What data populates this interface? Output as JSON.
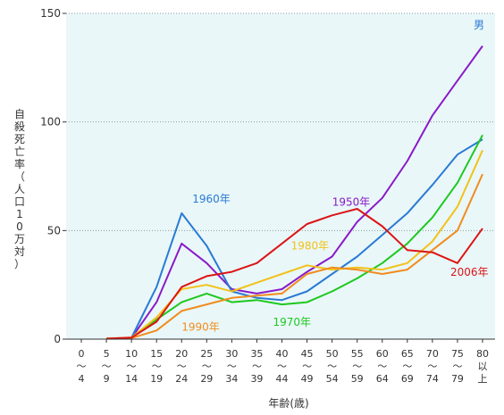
{
  "chart_data": {
    "type": "line",
    "title": "",
    "xlabel": "年齢(歳)",
    "ylabel": "自殺死亡率（人口10万対）",
    "ylim": [
      0,
      150
    ],
    "yticks": [
      "0",
      "50",
      "100",
      "150"
    ],
    "grid": "horizontal dotted",
    "corner_note": "男",
    "categories": [
      "0〜4",
      "5〜9",
      "10〜14",
      "15〜19",
      "20〜24",
      "25〜29",
      "30〜34",
      "35〜39",
      "40〜44",
      "45〜49",
      "50〜54",
      "55〜59",
      "60〜64",
      "65〜69",
      "70〜74",
      "75〜79",
      "80以上"
    ],
    "category_lines": [
      [
        "0",
        "〜",
        "4"
      ],
      [
        "5",
        "〜",
        "9"
      ],
      [
        "10",
        "〜",
        "14"
      ],
      [
        "15",
        "〜",
        "19"
      ],
      [
        "20",
        "〜",
        "24"
      ],
      [
        "25",
        "〜",
        "29"
      ],
      [
        "30",
        "〜",
        "34"
      ],
      [
        "35",
        "〜",
        "39"
      ],
      [
        "40",
        "〜",
        "44"
      ],
      [
        "45",
        "〜",
        "49"
      ],
      [
        "50",
        "〜",
        "54"
      ],
      [
        "55",
        "〜",
        "59"
      ],
      [
        "60",
        "〜",
        "64"
      ],
      [
        "65",
        "〜",
        "69"
      ],
      [
        "70",
        "〜",
        "74"
      ],
      [
        "75",
        "〜",
        "79"
      ],
      [
        "80",
        "以",
        "上"
      ]
    ],
    "series": [
      {
        "name": "1950年",
        "color": "#8a1ac8",
        "label_anchor_index": 11,
        "values": [
          null,
          0.2,
          0.5,
          17,
          44,
          35,
          23,
          21,
          23,
          31,
          38,
          54,
          65,
          82,
          103,
          119,
          135
        ]
      },
      {
        "name": "1960年",
        "color": "#2a7ad4",
        "label_anchor_index": 4,
        "values": [
          null,
          0.3,
          0.6,
          24,
          58,
          43,
          22,
          19,
          18,
          22,
          30,
          38,
          48,
          58,
          71,
          85,
          92
        ]
      },
      {
        "name": "1970年",
        "color": "#1ec81e",
        "label_anchor_index": 8,
        "values": [
          null,
          0.2,
          0.6,
          9,
          17,
          21,
          17,
          18,
          16,
          17,
          22,
          28,
          35,
          44,
          56,
          72,
          94
        ]
      },
      {
        "name": "1980年",
        "color": "#f2c21a",
        "label_anchor_index": 9,
        "values": [
          null,
          0.3,
          0.8,
          10,
          23,
          25,
          22,
          26,
          30,
          34,
          32,
          33,
          32,
          35,
          45,
          61,
          87
        ]
      },
      {
        "name": "1990年",
        "color": "#f08c1e",
        "label_anchor_index": 4,
        "values": [
          null,
          0.2,
          0.5,
          4,
          13,
          16,
          19,
          20,
          21,
          30,
          33,
          32,
          30,
          32,
          41,
          50,
          76
        ]
      },
      {
        "name": "2006年",
        "color": "#dc1414",
        "label_anchor_index": 15,
        "values": [
          null,
          0.2,
          0.7,
          8,
          24,
          29,
          31,
          35,
          44,
          53,
          57,
          60,
          52,
          41,
          40,
          35,
          51
        ]
      }
    ]
  }
}
